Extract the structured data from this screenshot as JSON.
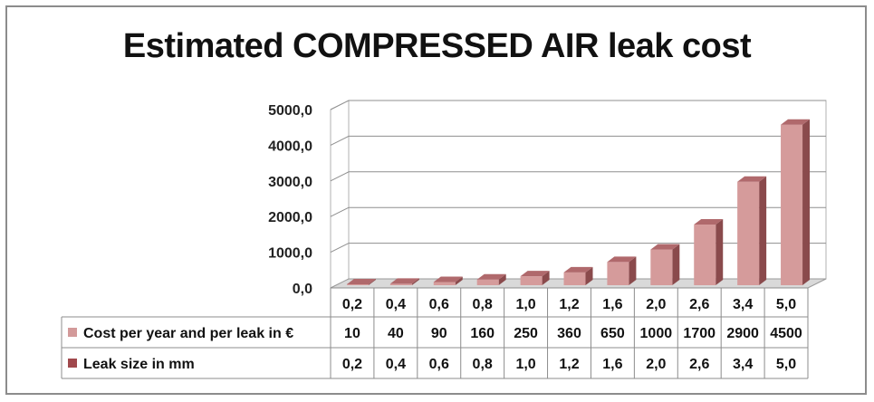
{
  "chart_data": {
    "type": "bar",
    "title": "Estimated COMPRESSED AIR leak cost",
    "categories": [
      "0,2",
      "0,4",
      "0,6",
      "0,8",
      "1,0",
      "1,2",
      "1,6",
      "2,0",
      "2,6",
      "3,4",
      "5,0"
    ],
    "series": [
      {
        "name": "Cost per year and per leak in €",
        "values": [
          10,
          40,
          90,
          160,
          250,
          360,
          650,
          1000,
          1700,
          2900,
          4500
        ],
        "value_labels": [
          "10",
          "40",
          "90",
          "160",
          "250",
          "360",
          "650",
          "1000",
          "1700",
          "2900",
          "4500"
        ],
        "color": "#d39a9a"
      },
      {
        "name": "Leak size in mm",
        "values": [
          0.2,
          0.4,
          0.6,
          0.8,
          1.0,
          1.2,
          1.6,
          2.0,
          2.6,
          3.4,
          5.0
        ],
        "value_labels": [
          "0,2",
          "0,4",
          "0,6",
          "0,8",
          "1,0",
          "1,2",
          "1,6",
          "2,0",
          "2,6",
          "3,4",
          "5,0"
        ],
        "color": "#a0484c"
      }
    ],
    "y_ticks": [
      "0,0",
      "1000,0",
      "2000,0",
      "3000,0",
      "4000,0",
      "5000,0"
    ],
    "ylim": [
      0,
      5000
    ],
    "grid": true,
    "legend": "data-table",
    "style": "3d-columns"
  }
}
